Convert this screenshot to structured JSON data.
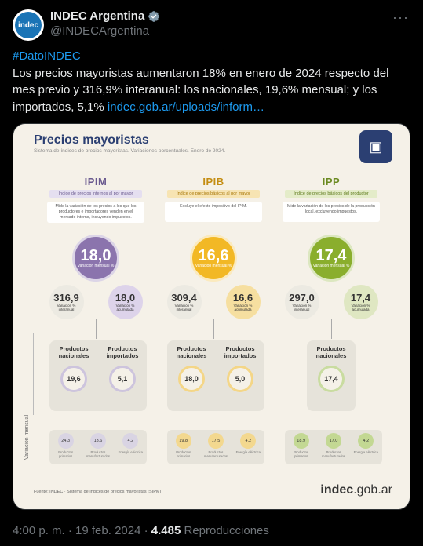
{
  "tweet": {
    "display_name": "INDEC Argentina",
    "handle": "@INDECArgentina",
    "avatar_text": "indec",
    "more_icon": "more-horizontal-icon",
    "hashtag": "#DatoINDEC",
    "body": "Los precios mayoristas aumentaron 18% en enero de 2024 respecto del mes previo y 316,9% interanual: los nacionales, 19,6% mensual; y los importados, 5,1%",
    "link": "indec.gob.ar/uploads/inform…",
    "timestamp": "4:00 p. m. · 19 feb. 2024 ·",
    "views_count": "4.485",
    "views_label": "Reproducciones"
  },
  "infographic": {
    "title": "Precios mayoristas",
    "subtitle": "Sistema de índices de precios mayoristas. Variaciones porcentuales. Enero de 2024.",
    "side_label": "Variación mensual",
    "source": "Fuente: INDEC · Sistema de índices de precios mayoristas (SIPM)",
    "logo_main": "indec",
    "logo_suffix": ".gob.ar",
    "columns": [
      {
        "code": "IPIM",
        "desc_title": "Índice de precios internos al por mayor",
        "desc": "Mide la variación de los precios a los que los productores e importadores venden en el mercado interno, incluyendo impuestos.",
        "monthly": "18,0",
        "monthly_label": "Variación mensual %",
        "yoy": "316,9",
        "yoy_label": "Variación % interanual",
        "accum": "18,0",
        "accum_label": "Variación % acumulada",
        "prod_a_label": "Productos nacionales",
        "prod_a_value": "19,6",
        "prod_b_label": "Productos importados",
        "prod_b_value": "5,1",
        "mini": [
          {
            "value": "24,3",
            "label": "Productos primarios"
          },
          {
            "value": "13,6",
            "label": "Productos manufacturados"
          },
          {
            "value": "4,2",
            "label": "Energía eléctrica"
          }
        ]
      },
      {
        "code": "IPIB",
        "desc_title": "Índice de precios básicos al por mayor",
        "desc": "Excluye el efecto impositivo del IPIM.",
        "monthly": "16,6",
        "monthly_label": "Variación mensual %",
        "yoy": "309,4",
        "yoy_label": "Variación % interanual",
        "accum": "16,6",
        "accum_label": "Variación % acumulada",
        "prod_a_label": "Productos nacionales",
        "prod_a_value": "18,0",
        "prod_b_label": "Productos importados",
        "prod_b_value": "5,0",
        "mini": [
          {
            "value": "19,8",
            "label": "Productos primarios"
          },
          {
            "value": "17,5",
            "label": "Productos manufacturados"
          },
          {
            "value": "4,2",
            "label": "Energía eléctrica"
          }
        ]
      },
      {
        "code": "IPP",
        "desc_title": "Índice de precios básicos del productor",
        "desc": "Mide la variación de los precios de la producción local, excluyendo impuestos.",
        "monthly": "17,4",
        "monthly_label": "Variación mensual %",
        "yoy": "297,0",
        "yoy_label": "Variación % interanual",
        "accum": "17,4",
        "accum_label": "Variación % acumulada",
        "prod_a_label": "Productos nacionales",
        "prod_a_value": "17,4",
        "mini": [
          {
            "value": "18,9",
            "label": "Productos primarios"
          },
          {
            "value": "17,0",
            "label": "Productos manufacturados"
          },
          {
            "value": "4,2",
            "label": "Energía eléctrica"
          }
        ]
      }
    ]
  }
}
